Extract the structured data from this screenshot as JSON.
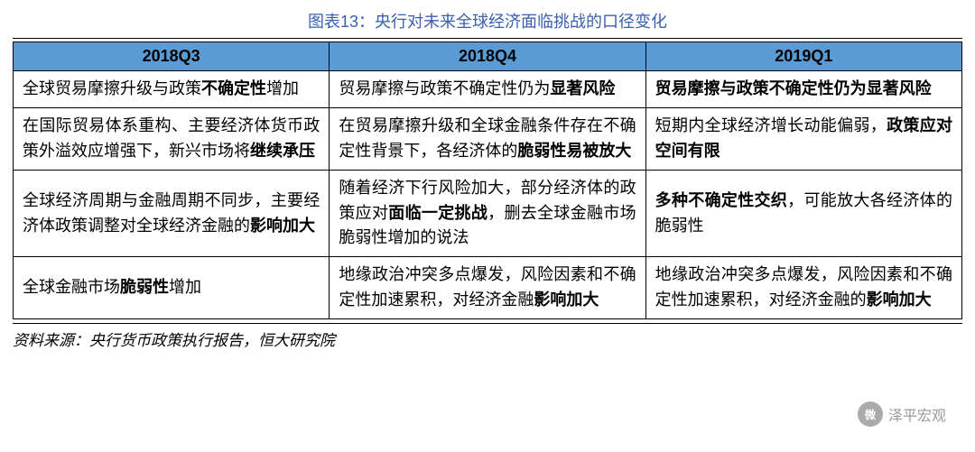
{
  "title": "图表13：央行对未来全球经济面临挑战的口径变化",
  "source": "资料来源：央行货币政策执行报告，恒大研究院",
  "watermark": {
    "label": "泽平宏观",
    "icon": "微"
  },
  "table": {
    "type": "table",
    "header_bg": "#5b9bd5",
    "border_color": "#000000",
    "title_color": "#3a5fae",
    "columns": [
      "2018Q3",
      "2018Q4",
      "2019Q1"
    ],
    "rows": [
      {
        "c1": [
          {
            "t": "全球贸易摩擦升级与政策",
            "b": false
          },
          {
            "t": "不确定性",
            "b": true
          },
          {
            "t": "增加",
            "b": false
          }
        ],
        "c2": [
          {
            "t": "贸易摩擦与政策不确定性仍为",
            "b": false
          },
          {
            "t": "显著风险",
            "b": true
          }
        ],
        "c3": [
          {
            "t": "贸易摩擦与政策不确定性仍为显著风险",
            "b": true
          }
        ]
      },
      {
        "c1": [
          {
            "t": "在国际贸易体系重构、主要经济体货币政策外溢效应增强下，新兴市场将",
            "b": false
          },
          {
            "t": "继续承压",
            "b": true
          }
        ],
        "c2": [
          {
            "t": "在贸易摩擦升级和全球金融条件存在不确定性背景下，各经济体的",
            "b": false
          },
          {
            "t": "脆弱性易被放大",
            "b": true
          }
        ],
        "c3": [
          {
            "t": "短期内全球经济增长动能偏弱，",
            "b": false
          },
          {
            "t": "政策应对空间有限",
            "b": true
          }
        ]
      },
      {
        "c1": [
          {
            "t": "全球经济周期与金融周期不同步，主要经济体政策调整对全球经济金融的",
            "b": false
          },
          {
            "t": "影响加大",
            "b": true
          }
        ],
        "c2": [
          {
            "t": "随着经济下行风险加大，部分经济体的政策应对",
            "b": false
          },
          {
            "t": "面临一定挑战",
            "b": true
          },
          {
            "t": "，删去全球金融市场脆弱性增加的说法",
            "b": false
          }
        ],
        "c3": [
          {
            "t": "多种不确定性交织",
            "b": true
          },
          {
            "t": "，可能放大各经济体的脆弱性",
            "b": false
          }
        ]
      },
      {
        "c1": [
          {
            "t": "全球金融市场",
            "b": false
          },
          {
            "t": "脆弱性",
            "b": true
          },
          {
            "t": "增加",
            "b": false
          }
        ],
        "c2": [
          {
            "t": "地缘政治冲突多点爆发，风险因素和不确定性加速累积，对经济金融",
            "b": false
          },
          {
            "t": "影响加大",
            "b": true
          }
        ],
        "c3": [
          {
            "t": "地缘政治冲突多点爆发，风险因素和不确定性加速累积，对经济金融的",
            "b": false
          },
          {
            "t": "影响加大",
            "b": true
          }
        ]
      }
    ]
  }
}
